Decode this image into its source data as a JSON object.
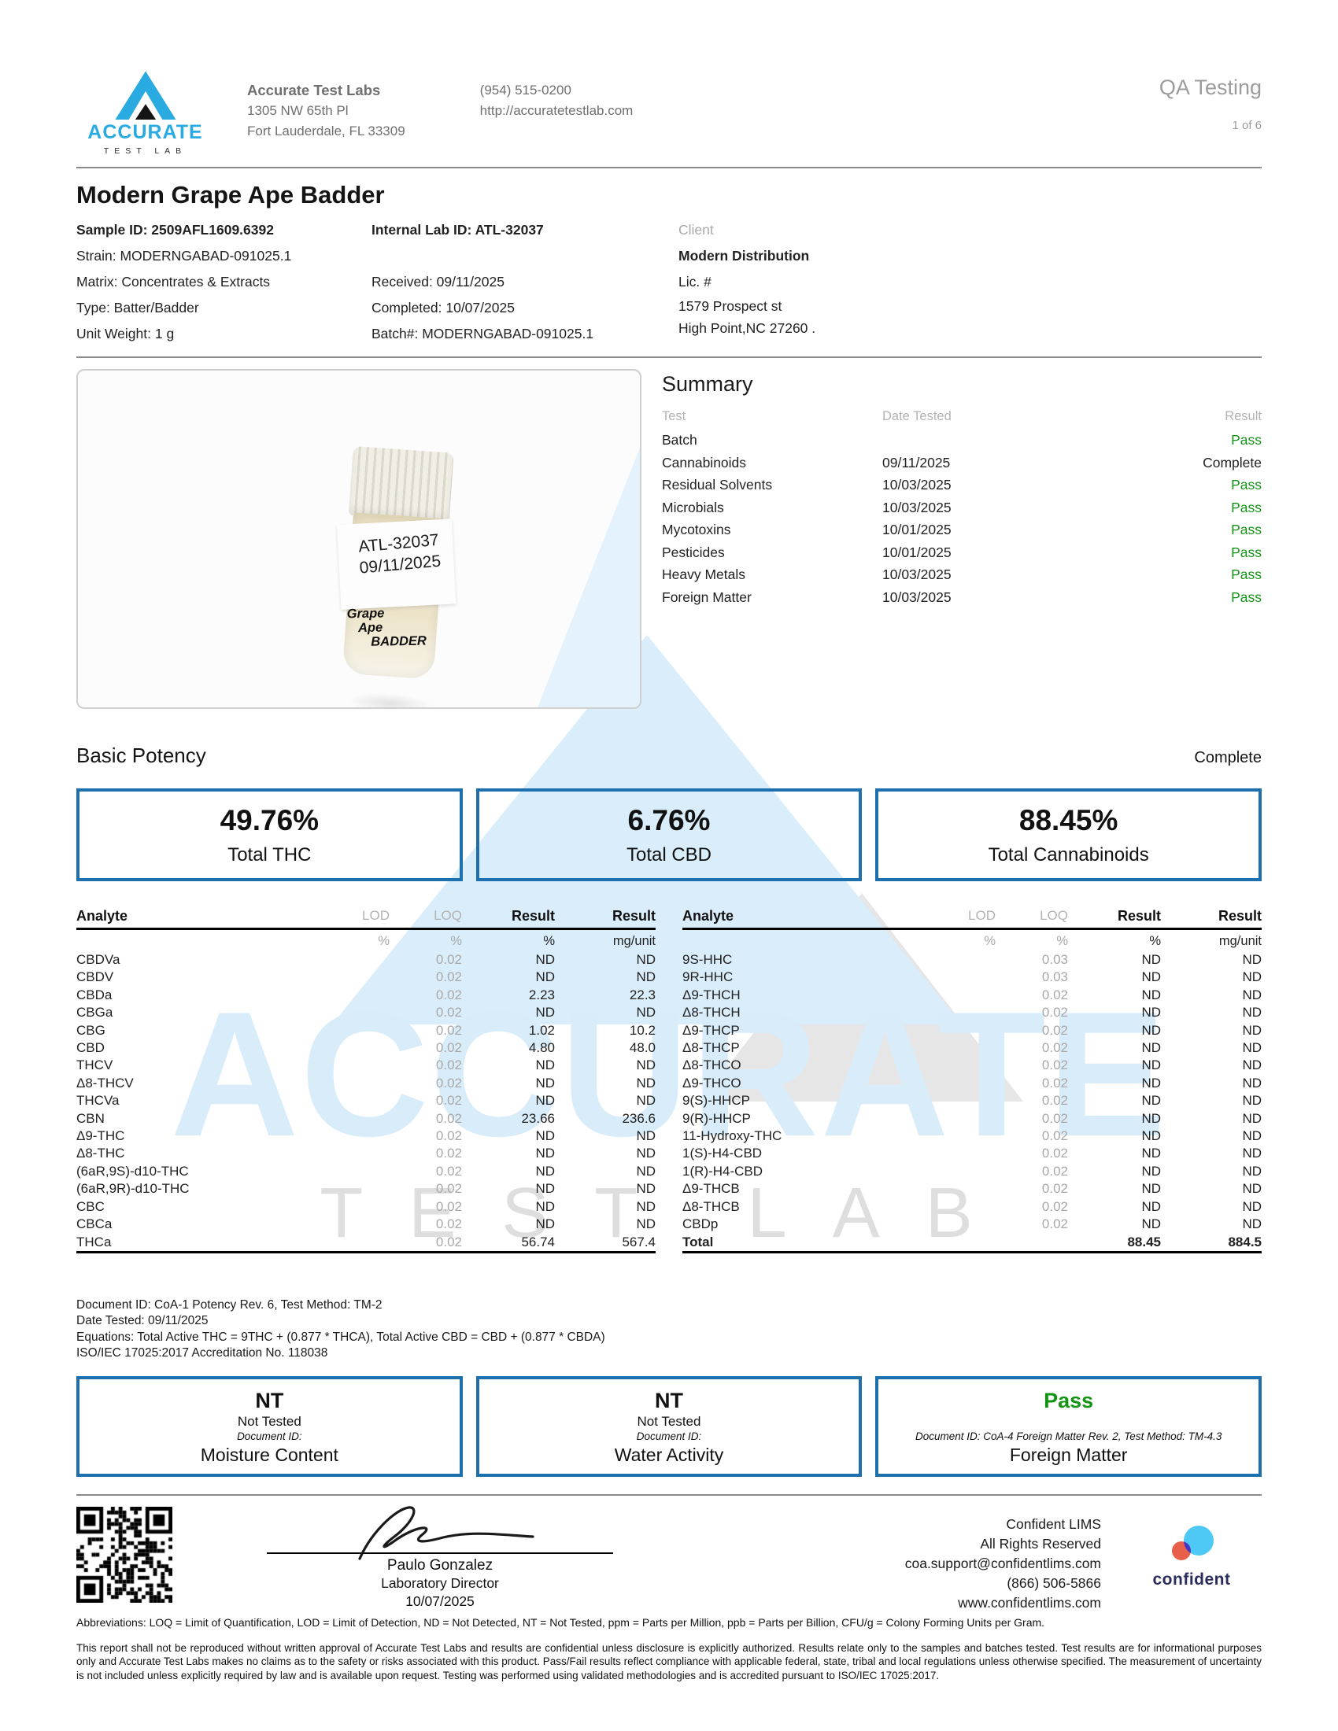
{
  "colors": {
    "accent_blue": "#1e6fad",
    "pass_green": "#149414",
    "logo_blue": "#29abe2",
    "watermark_blue": "#d9edfa",
    "watermark_gray": "#e0e0e0"
  },
  "header": {
    "brand": "ACCURATE",
    "brand_sub": "TEST LAB",
    "lab_name": "Accurate Test Labs",
    "address1": "1305 NW 65th Pl",
    "address2": "Fort Lauderdale, FL 33309",
    "phone": "(954) 515-0200",
    "website": "http://accuratetestlab.com",
    "doc_type": "QA Testing",
    "page": "1 of 6"
  },
  "title": "Modern Grape Ape Badder",
  "sample": {
    "sample_id": "Sample ID: 2509AFL1609.6392",
    "strain": "Strain: MODERNGABAD-091025.1",
    "matrix": "Matrix: Concentrates & Extracts",
    "type": "Type: Batter/Badder",
    "unit_weight": "Unit Weight: 1 g",
    "internal_id": "Internal Lab ID: ATL-32037",
    "received": "Received: 09/11/2025",
    "completed": "Completed: 10/07/2025",
    "batch": "Batch#: MODERNGABAD-091025.1"
  },
  "client": {
    "heading": "Client",
    "name": "Modern Distribution",
    "lic": "Lic. #",
    "addr1": "1579 Prospect st",
    "addr2": "High Point,NC 27260 ."
  },
  "photo": {
    "label_id": "ATL-32037",
    "label_date": "09/11/2025",
    "hand1": "Grape",
    "hand2": "Ape",
    "hand3": "BADDER"
  },
  "summary": {
    "heading": "Summary",
    "col_test": "Test",
    "col_date": "Date Tested",
    "col_result": "Result",
    "rows": [
      {
        "test": "Batch",
        "date": "",
        "result": "Pass",
        "cls": "green"
      },
      {
        "test": "Cannabinoids",
        "date": "09/11/2025",
        "result": "Complete",
        "cls": ""
      },
      {
        "test": "Residual Solvents",
        "date": "10/03/2025",
        "result": "Pass",
        "cls": "green"
      },
      {
        "test": "Microbials",
        "date": "10/03/2025",
        "result": "Pass",
        "cls": "green"
      },
      {
        "test": "Mycotoxins",
        "date": "10/01/2025",
        "result": "Pass",
        "cls": "green"
      },
      {
        "test": "Pesticides",
        "date": "10/01/2025",
        "result": "Pass",
        "cls": "green"
      },
      {
        "test": "Heavy Metals",
        "date": "10/03/2025",
        "result": "Pass",
        "cls": "green"
      },
      {
        "test": "Foreign Matter",
        "date": "10/03/2025",
        "result": "Pass",
        "cls": "green"
      }
    ]
  },
  "potency": {
    "heading": "Basic Potency",
    "status": "Complete",
    "boxes": [
      {
        "value": "49.76%",
        "label": "Total THC"
      },
      {
        "value": "6.76%",
        "label": "Total CBD"
      },
      {
        "value": "88.45%",
        "label": "Total Cannabinoids"
      }
    ]
  },
  "cannabinoids": {
    "header": {
      "analyte": "Analyte",
      "lod": "LOD",
      "loq": "LOQ",
      "result_pct": "Result",
      "result_mg": "Result",
      "unit_pct": "%",
      "unit_mg": "mg/unit"
    },
    "left_rows": [
      {
        "name": "CBDVa",
        "lod": "",
        "loq": "0.02",
        "pct": "ND",
        "mg": "ND",
        "cls": ""
      },
      {
        "name": "CBDV",
        "lod": "",
        "loq": "0.02",
        "pct": "ND",
        "mg": "ND",
        "cls": ""
      },
      {
        "name": "CBDa",
        "lod": "",
        "loq": "0.02",
        "pct": "2.23",
        "mg": "22.3",
        "cls": ""
      },
      {
        "name": "CBGa",
        "lod": "",
        "loq": "0.02",
        "pct": "ND",
        "mg": "ND",
        "cls": ""
      },
      {
        "name": "CBG",
        "lod": "",
        "loq": "0.02",
        "pct": "1.02",
        "mg": "10.2",
        "cls": ""
      },
      {
        "name": "CBD",
        "lod": "",
        "loq": "0.02",
        "pct": "4.80",
        "mg": "48.0",
        "cls": ""
      },
      {
        "name": "THCV",
        "lod": "",
        "loq": "0.02",
        "pct": "ND",
        "mg": "ND",
        "cls": ""
      },
      {
        "name": "Δ8-THCV",
        "lod": "",
        "loq": "0.02",
        "pct": "ND",
        "mg": "ND",
        "cls": ""
      },
      {
        "name": "THCVa",
        "lod": "",
        "loq": "0.02",
        "pct": "ND",
        "mg": "ND",
        "cls": ""
      },
      {
        "name": "CBN",
        "lod": "",
        "loq": "0.02",
        "pct": "23.66",
        "mg": "236.6",
        "cls": ""
      },
      {
        "name": "Δ9-THC",
        "lod": "",
        "loq": "0.02",
        "pct": "ND",
        "mg": "ND",
        "cls": ""
      },
      {
        "name": "Δ8-THC",
        "lod": "",
        "loq": "0.02",
        "pct": "ND",
        "mg": "ND",
        "cls": ""
      },
      {
        "name": "(6aR,9S)-d10-THC",
        "lod": "",
        "loq": "0.02",
        "pct": "ND",
        "mg": "ND",
        "cls": ""
      },
      {
        "name": "(6aR,9R)-d10-THC",
        "lod": "",
        "loq": "0.02",
        "pct": "ND",
        "mg": "ND",
        "cls": ""
      },
      {
        "name": "CBC",
        "lod": "",
        "loq": "0.02",
        "pct": "ND",
        "mg": "ND",
        "cls": ""
      },
      {
        "name": "CBCa",
        "lod": "",
        "loq": "0.02",
        "pct": "ND",
        "mg": "ND",
        "cls": ""
      },
      {
        "name": "THCa",
        "lod": "",
        "loq": "0.02",
        "pct": "56.74",
        "mg": "567.4",
        "cls": ""
      }
    ],
    "right_rows": [
      {
        "name": "9S-HHC",
        "lod": "",
        "loq": "0.03",
        "pct": "ND",
        "mg": "ND",
        "cls": ""
      },
      {
        "name": "9R-HHC",
        "lod": "",
        "loq": "0.03",
        "pct": "ND",
        "mg": "ND",
        "cls": ""
      },
      {
        "name": "Δ9-THCH",
        "lod": "",
        "loq": "0.02",
        "pct": "ND",
        "mg": "ND",
        "cls": ""
      },
      {
        "name": "Δ8-THCH",
        "lod": "",
        "loq": "0.02",
        "pct": "ND",
        "mg": "ND",
        "cls": ""
      },
      {
        "name": "Δ9-THCP",
        "lod": "",
        "loq": "0.02",
        "pct": "ND",
        "mg": "ND",
        "cls": ""
      },
      {
        "name": "Δ8-THCP",
        "lod": "",
        "loq": "0.02",
        "pct": "ND",
        "mg": "ND",
        "cls": ""
      },
      {
        "name": "Δ8-THCO",
        "lod": "",
        "loq": "0.02",
        "pct": "ND",
        "mg": "ND",
        "cls": ""
      },
      {
        "name": "Δ9-THCO",
        "lod": "",
        "loq": "0.02",
        "pct": "ND",
        "mg": "ND",
        "cls": ""
      },
      {
        "name": "9(S)-HHCP",
        "lod": "",
        "loq": "0.02",
        "pct": "ND",
        "mg": "ND",
        "cls": ""
      },
      {
        "name": "9(R)-HHCP",
        "lod": "",
        "loq": "0.02",
        "pct": "ND",
        "mg": "ND",
        "cls": ""
      },
      {
        "name": "11-Hydroxy-THC",
        "lod": "",
        "loq": "0.02",
        "pct": "ND",
        "mg": "ND",
        "cls": ""
      },
      {
        "name": "1(S)-H4-CBD",
        "lod": "",
        "loq": "0.02",
        "pct": "ND",
        "mg": "ND",
        "cls": ""
      },
      {
        "name": "1(R)-H4-CBD",
        "lod": "",
        "loq": "0.02",
        "pct": "ND",
        "mg": "ND",
        "cls": ""
      },
      {
        "name": "Δ9-THCB",
        "lod": "",
        "loq": "0.02",
        "pct": "ND",
        "mg": "ND",
        "cls": ""
      },
      {
        "name": "Δ8-THCB",
        "lod": "",
        "loq": "0.02",
        "pct": "ND",
        "mg": "ND",
        "cls": ""
      },
      {
        "name": "CBDp",
        "lod": "",
        "loq": "0.02",
        "pct": "ND",
        "mg": "ND",
        "cls": ""
      },
      {
        "name": "Total",
        "lod": "",
        "loq": "",
        "pct": "88.45",
        "mg": "884.5",
        "cls": "total"
      }
    ]
  },
  "doc_info": {
    "line1": "Document ID: CoA-1 Potency Rev. 6, Test Method: TM-2",
    "line2": "Date Tested: 09/11/2025",
    "line3": "Equations: Total Active THC = 9THC + (0.877 * THCA), Total Active CBD = CBD + (0.877 * CBDA)",
    "line4": "ISO/IEC 17025:2017 Accreditation No. 118038"
  },
  "bottom_boxes": [
    {
      "big": "NT",
      "sub": "Not Tested",
      "doc": "Document ID:",
      "label": "Moisture Content",
      "bigClass": ""
    },
    {
      "big": "NT",
      "sub": "Not Tested",
      "doc": "Document ID:",
      "label": "Water Activity",
      "bigClass": ""
    },
    {
      "big": "Pass",
      "sub": "",
      "doc": "Document ID: CoA-4 Foreign Matter Rev. 2, Test Method: TM-4.3",
      "label": "Foreign Matter",
      "bigClass": "green"
    }
  ],
  "signature": {
    "name": "Paulo Gonzalez",
    "title": "Laboratory Director",
    "date": "10/07/2025"
  },
  "lims": {
    "line1": "Confident LIMS",
    "line2": "All Rights Reserved",
    "line3": "coa.support@confidentlims.com",
    "line4": "(866) 506-5866",
    "line5": "www.confidentlims.com",
    "logo_text": "confident"
  },
  "footnotes": {
    "abbreviations": "Abbreviations: LOQ = Limit of Quantification, LOD = Limit of Detection, ND = Not Detected, NT = Not Tested, ppm = Parts per Million, ppb = Parts per Billion, CFU/g = Colony Forming Units per Gram.",
    "disclaimer": "This report shall not be reproduced without written approval of Accurate Test Labs and results are confidential unless disclosure is explicitly authorized. Results relate only to the samples and batches tested. Test results are for informational purposes only and Accurate Test Labs makes no claims as to the safety or risks associated with this product. Pass/Fail results reflect compliance with applicable federal, state, tribal and local regulations unless otherwise specified. The measurement of uncertainty is not included unless explicitly required by law and is available upon request. Testing was performed using validated methodologies and is accredited pursuant to ISO/IEC 17025:2017."
  },
  "watermark": {
    "brand": "ACCURATE",
    "sub": "TEST LAB"
  }
}
